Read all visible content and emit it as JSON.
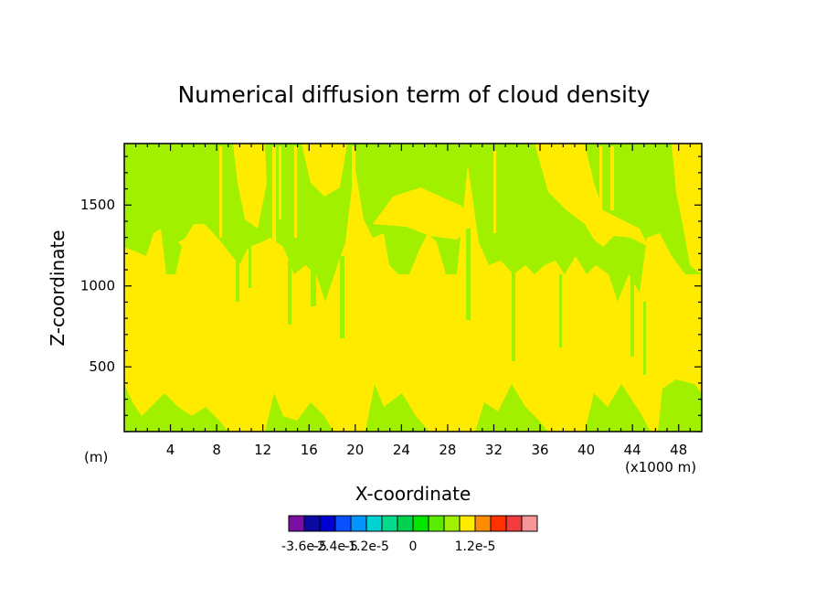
{
  "chart_data": {
    "type": "heatmap",
    "title": "Numerical diffusion term of cloud density",
    "xlabel": "X-coordinate",
    "ylabel": "Z-coordinate",
    "x_unit_label": "(x1000 m)",
    "y_unit_label": "(m)",
    "xlim": [
      0,
      50
    ],
    "ylim": [
      100,
      1880
    ],
    "x_ticks": [
      4,
      8,
      12,
      16,
      20,
      24,
      28,
      32,
      36,
      40,
      44,
      48
    ],
    "x_tick_labels": [
      "4",
      "8",
      "12",
      "16",
      "20",
      "24",
      "28",
      "32",
      "36",
      "40",
      "44",
      "48"
    ],
    "y_ticks": [
      500,
      1000,
      1500
    ],
    "y_tick_labels": [
      "500",
      "1000",
      "1500"
    ],
    "colorbar": {
      "colors": [
        "#7a0fa6",
        "#0a0aa0",
        "#0000d2",
        "#0a50ff",
        "#0096ff",
        "#00d2d2",
        "#00dc8c",
        "#00d250",
        "#00e600",
        "#5aeb00",
        "#a0f000",
        "#ffeb00",
        "#ff8c00",
        "#ff3200",
        "#f03c3c",
        "#f59696"
      ],
      "tick_labels": [
        "-3.6e-5",
        "-2.4e-5",
        "-1.2e-5",
        "0",
        "1.2e-5"
      ]
    },
    "field_colors": {
      "zero_band": "#ffeb00",
      "slightly_negative": "#a0f000"
    },
    "regions": [
      {
        "level": "slightly_negative",
        "description_z": "upper layer above ~1100 m, patchy"
      },
      {
        "level": "zero_band",
        "description_z": "dominant between ~300 m and ~1100 m"
      },
      {
        "level": "slightly_negative",
        "description_z": "thin patches near the surface below ~300 m"
      }
    ]
  }
}
